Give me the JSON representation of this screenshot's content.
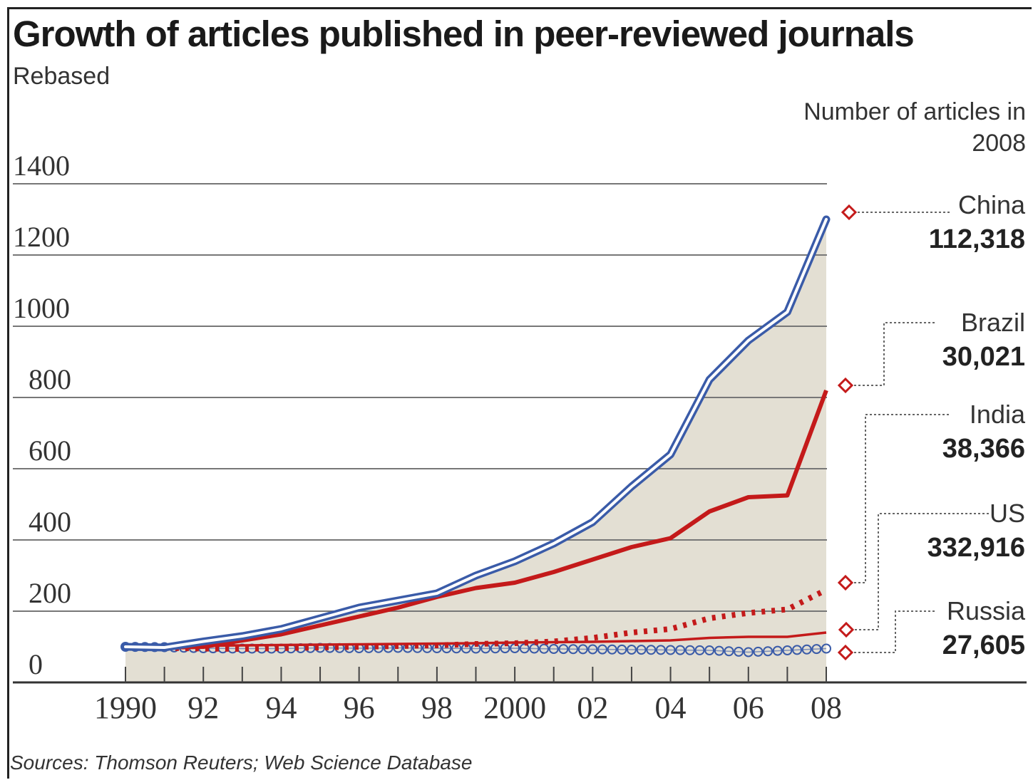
{
  "chart_data": {
    "type": "line",
    "title": "Growth of articles published in peer-reviewed journals",
    "subtitle": "Rebased",
    "legend_heading": "Number of articles in 2008",
    "source": "Sources: Thomson Reuters; Web Science Database",
    "x": [
      1990,
      1991,
      1992,
      1993,
      1994,
      1995,
      1996,
      1997,
      1998,
      1999,
      2000,
      2001,
      2002,
      2003,
      2004,
      2005,
      2006,
      2007,
      2008
    ],
    "x_tick_values": [
      1990,
      1992,
      1994,
      1996,
      1998,
      2000,
      2002,
      2004,
      2006,
      2008
    ],
    "x_tick_labels": [
      "1990",
      "92",
      "94",
      "96",
      "98",
      "2000",
      "02",
      "04",
      "06",
      "08"
    ],
    "y_ticks": [
      0,
      200,
      400,
      600,
      800,
      1000,
      1200,
      1400
    ],
    "ylim": [
      0,
      1400
    ],
    "xlim": [
      1990,
      2008
    ],
    "grid": true,
    "series": [
      {
        "name": "China",
        "count_2008": "112,318",
        "color": "#3a5ba8",
        "style": "double",
        "values": [
          100,
          98,
          115,
          130,
          150,
          180,
          210,
          230,
          250,
          300,
          340,
          390,
          450,
          550,
          640,
          850,
          960,
          1040,
          1300
        ]
      },
      {
        "name": "Brazil",
        "count_2008": "30,021",
        "color": "#c41a1a",
        "style": "solid",
        "values": [
          100,
          98,
          100,
          118,
          135,
          160,
          185,
          210,
          240,
          265,
          280,
          310,
          345,
          380,
          405,
          480,
          520,
          525,
          820
        ]
      },
      {
        "name": "India",
        "count_2008": "38,366",
        "color": "#c41a1a",
        "style": "dotted",
        "values": [
          100,
          97,
          95,
          94,
          96,
          98,
          100,
          102,
          104,
          108,
          110,
          115,
          125,
          140,
          150,
          180,
          195,
          205,
          260
        ]
      },
      {
        "name": "US",
        "count_2008": "332,916",
        "color": "#c41a1a",
        "style": "thin",
        "values": [
          100,
          101,
          103,
          104,
          105,
          106,
          107,
          108,
          109,
          110,
          112,
          113,
          114,
          116,
          118,
          125,
          128,
          128,
          140
        ]
      },
      {
        "name": "Russia",
        "count_2008": "27,605",
        "color": "#3a5ba8",
        "style": "circles",
        "values": [
          100,
          99,
          96,
          95,
          95,
          97,
          96,
          97,
          96,
          95,
          96,
          94,
          93,
          92,
          91,
          90,
          85,
          90,
          95
        ]
      }
    ],
    "shaded_area": "China",
    "area_color": "#e3dfd3"
  }
}
